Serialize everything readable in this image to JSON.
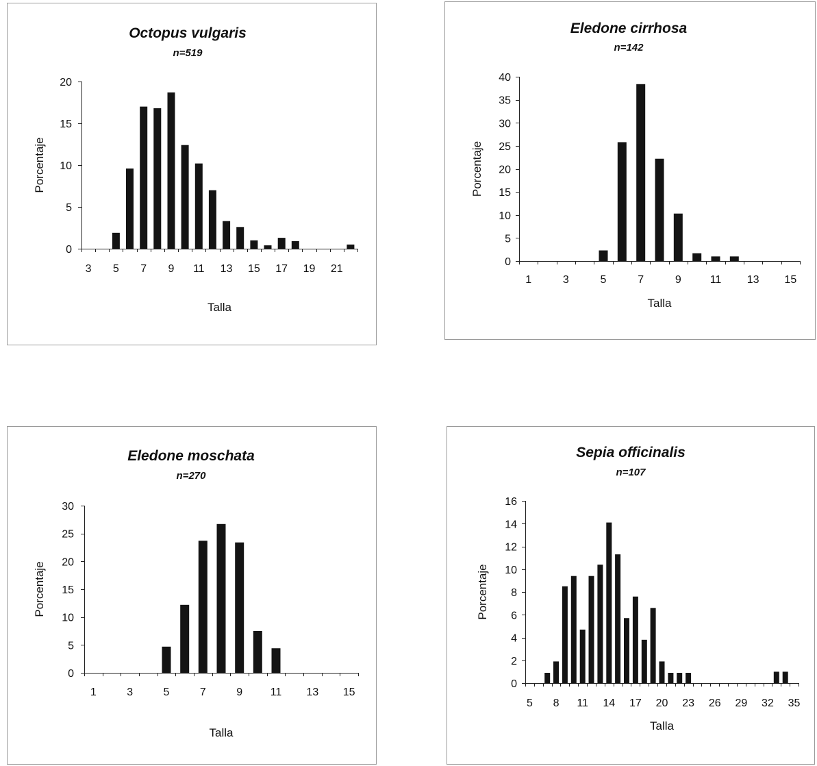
{
  "chart_data": [
    {
      "type": "bar",
      "title": "Octopus vulgaris",
      "subtitle": "n=519",
      "xlabel": "Talla",
      "ylabel": "Porcentaje",
      "x": [
        3,
        4,
        5,
        6,
        7,
        8,
        9,
        10,
        11,
        12,
        13,
        14,
        15,
        16,
        17,
        18,
        19,
        20,
        21,
        22
      ],
      "values": [
        0,
        0,
        1.9,
        9.6,
        17.0,
        16.8,
        18.7,
        12.4,
        10.2,
        7.0,
        3.3,
        2.6,
        1.0,
        0.4,
        1.3,
        0.9,
        0,
        0,
        0,
        0.5
      ],
      "x_tick_labels": [
        "3",
        "5",
        "7",
        "9",
        "11",
        "13",
        "15",
        "17",
        "19",
        "21"
      ],
      "y_ticks": [
        0,
        5,
        10,
        15,
        20
      ],
      "ylim": [
        0,
        20
      ],
      "grid": false
    },
    {
      "type": "bar",
      "title": "Eledone cirrhosa",
      "subtitle": "n=142",
      "xlabel": "Talla",
      "ylabel": "Porcentaje",
      "x": [
        1,
        2,
        3,
        4,
        5,
        6,
        7,
        8,
        9,
        10,
        11,
        12,
        13,
        14,
        15
      ],
      "values": [
        0,
        0,
        0,
        0,
        2.3,
        25.8,
        38.4,
        22.2,
        10.3,
        1.7,
        1.0,
        1.0,
        0,
        0,
        0
      ],
      "x_tick_labels": [
        "1",
        "3",
        "5",
        "7",
        "9",
        "11",
        "13",
        "15"
      ],
      "y_ticks": [
        0,
        5,
        10,
        15,
        20,
        25,
        30,
        35,
        40
      ],
      "ylim": [
        0,
        40
      ],
      "grid": false
    },
    {
      "type": "bar",
      "title": "Eledone moschata",
      "subtitle": "n=270",
      "xlabel": "Talla",
      "ylabel": "Porcentaje",
      "x": [
        1,
        2,
        3,
        4,
        5,
        6,
        7,
        8,
        9,
        10,
        11,
        12,
        13,
        14,
        15
      ],
      "values": [
        0,
        0,
        0,
        0,
        4.7,
        12.2,
        23.7,
        26.7,
        23.4,
        7.5,
        4.4,
        0,
        0,
        0,
        0
      ],
      "x_tick_labels": [
        "1",
        "3",
        "5",
        "7",
        "9",
        "11",
        "13",
        "15"
      ],
      "y_ticks": [
        0,
        5,
        10,
        15,
        20,
        25,
        30
      ],
      "ylim": [
        0,
        30
      ],
      "grid": false
    },
    {
      "type": "bar",
      "title": "Sepia officinalis",
      "subtitle": "n=107",
      "xlabel": "Talla",
      "ylabel": "Porcentaje",
      "x": [
        5,
        6,
        7,
        8,
        9,
        10,
        11,
        12,
        13,
        14,
        15,
        16,
        17,
        18,
        19,
        20,
        21,
        22,
        23,
        24,
        25,
        26,
        27,
        28,
        29,
        30,
        31,
        32,
        33,
        34,
        35
      ],
      "values": [
        0,
        0,
        0.9,
        1.9,
        8.5,
        9.4,
        4.7,
        9.4,
        10.4,
        14.1,
        11.3,
        5.7,
        7.6,
        3.8,
        6.6,
        1.9,
        0.9,
        0.9,
        0.9,
        0,
        0,
        0,
        0,
        0,
        0,
        0,
        0,
        0,
        1.0,
        1.0,
        0
      ],
      "x_tick_labels": [
        "5",
        "8",
        "11",
        "14",
        "17",
        "20",
        "23",
        "26",
        "29",
        "32",
        "35"
      ],
      "y_ticks": [
        0,
        2,
        4,
        6,
        8,
        10,
        12,
        14,
        16
      ],
      "ylim": [
        0,
        16
      ],
      "grid": false
    }
  ]
}
